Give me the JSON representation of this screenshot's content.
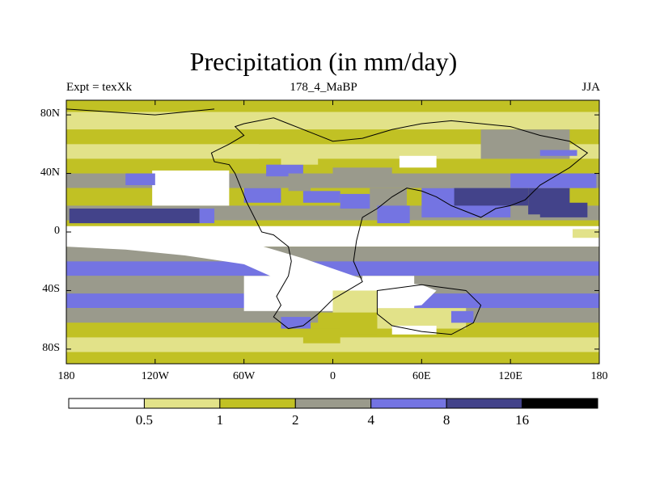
{
  "chart_data": {
    "type": "heatmap",
    "title": "Precipitation (in mm/day)",
    "subtitle_left": "Expt = texXk",
    "subtitle_center": "178_4_MaBP",
    "subtitle_right": "JJA",
    "x_range": [
      -180,
      180
    ],
    "y_range": [
      -90,
      90
    ],
    "x_ticks": [
      {
        "value": -180,
        "label": "180"
      },
      {
        "value": -120,
        "label": "120W"
      },
      {
        "value": -60,
        "label": "60W"
      },
      {
        "value": 0,
        "label": "0"
      },
      {
        "value": 60,
        "label": "60E"
      },
      {
        "value": 120,
        "label": "120E"
      },
      {
        "value": 180,
        "label": "180"
      }
    ],
    "y_ticks": [
      {
        "value": 80,
        "label": "80N"
      },
      {
        "value": 40,
        "label": "40N"
      },
      {
        "value": 0,
        "label": "0"
      },
      {
        "value": -40,
        "label": "40S"
      },
      {
        "value": -80,
        "label": "80S"
      }
    ],
    "levels": [
      "0.5",
      "1",
      "2",
      "4",
      "8",
      "16"
    ],
    "colors": [
      "#ffffff",
      "#e2e289",
      "#c1c124",
      "#9a9a8c",
      "#7474e2",
      "#43438a",
      "#000000"
    ],
    "bands": [
      {
        "lat_top": 90,
        "lat_bottom": 82,
        "level": 2
      },
      {
        "lat_top": 82,
        "lat_bottom": 70,
        "level": 1
      },
      {
        "lat_top": 70,
        "lat_bottom": 60,
        "level": 2
      },
      {
        "lat_top": 60,
        "lat_bottom": 50,
        "level": 1
      },
      {
        "lat_top": 50,
        "lat_bottom": 40,
        "level": 2
      },
      {
        "lat_top": 40,
        "lat_bottom": 30,
        "level": 3
      },
      {
        "lat_top": 30,
        "lat_bottom": 18,
        "level": 2
      },
      {
        "lat_top": 18,
        "lat_bottom": 8,
        "level": 3
      },
      {
        "lat_top": 8,
        "lat_bottom": 4,
        "level": 2
      },
      {
        "lat_top": 4,
        "lat_bottom": -10,
        "level": 0
      },
      {
        "lat_top": -10,
        "lat_bottom": -20,
        "level": 3
      },
      {
        "lat_top": -20,
        "lat_bottom": -30,
        "level": 4
      },
      {
        "lat_top": -30,
        "lat_bottom": -42,
        "level": 3
      },
      {
        "lat_top": -42,
        "lat_bottom": -52,
        "level": 4
      },
      {
        "lat_top": -52,
        "lat_bottom": -62,
        "level": 3
      },
      {
        "lat_top": -62,
        "lat_bottom": -72,
        "level": 2
      },
      {
        "lat_top": -72,
        "lat_bottom": -82,
        "level": 1
      },
      {
        "lat_top": -82,
        "lat_bottom": -90,
        "level": 2
      }
    ],
    "patches": [
      {
        "lon_min": -122,
        "lon_max": -70,
        "lat_max": 42,
        "lat_min": 18,
        "level": 0
      },
      {
        "lon_min": -112,
        "lon_max": -78,
        "lat_max": 40,
        "lat_min": 24,
        "level": 0
      },
      {
        "lon_min": -178,
        "lon_max": -90,
        "lat_max": 16,
        "lat_min": 6,
        "level": 5
      },
      {
        "lon_min": -90,
        "lon_max": -80,
        "lat_max": 16,
        "lat_min": 6,
        "level": 4
      },
      {
        "lon_min": -140,
        "lon_max": -120,
        "lat_max": 40,
        "lat_min": 32,
        "level": 4
      },
      {
        "lon_min": -45,
        "lon_max": -20,
        "lat_max": 46,
        "lat_min": 38,
        "level": 4
      },
      {
        "lon_min": -30,
        "lon_max": -15,
        "lat_max": 40,
        "lat_min": 28,
        "level": 3
      },
      {
        "lon_min": -70,
        "lon_max": -50,
        "lat_max": 60,
        "lat_min": 50,
        "level": 1
      },
      {
        "lon_min": -35,
        "lon_max": -10,
        "lat_max": 54,
        "lat_min": 46,
        "level": 1
      },
      {
        "lon_min": -60,
        "lon_max": -35,
        "lat_max": 30,
        "lat_min": 20,
        "level": 4
      },
      {
        "lon_min": -20,
        "lon_max": 5,
        "lat_max": 28,
        "lat_min": 20,
        "level": 4
      },
      {
        "lon_min": 0,
        "lon_max": 40,
        "lat_max": 44,
        "lat_min": 34,
        "level": 3
      },
      {
        "lon_min": 5,
        "lon_max": 30,
        "lat_max": 26,
        "lat_min": 16,
        "level": 4
      },
      {
        "lon_min": 25,
        "lon_max": 50,
        "lat_max": 30,
        "lat_min": 12,
        "level": 3
      },
      {
        "lon_min": 30,
        "lon_max": 52,
        "lat_max": 18,
        "lat_min": 6,
        "level": 4
      },
      {
        "lon_min": 60,
        "lon_max": 120,
        "lat_max": 30,
        "lat_min": 10,
        "level": 4
      },
      {
        "lon_min": 82,
        "lon_max": 132,
        "lat_max": 30,
        "lat_min": 18,
        "level": 5
      },
      {
        "lon_min": 132,
        "lon_max": 160,
        "lat_max": 30,
        "lat_min": 12,
        "level": 5
      },
      {
        "lon_min": 140,
        "lon_max": 172,
        "lat_max": 20,
        "lat_min": 10,
        "level": 5
      },
      {
        "lon_min": 120,
        "lon_max": 178,
        "lat_max": 40,
        "lat_min": 30,
        "level": 4
      },
      {
        "lon_min": 100,
        "lon_max": 160,
        "lat_max": 70,
        "lat_min": 50,
        "level": 3
      },
      {
        "lon_min": 140,
        "lon_max": 165,
        "lat_max": 56,
        "lat_min": 52,
        "level": 4
      },
      {
        "lon_min": 162,
        "lon_max": 180,
        "lat_max": 2,
        "lat_min": -4,
        "level": 1
      },
      {
        "lon_min": 45,
        "lon_max": 70,
        "lat_max": 52,
        "lat_min": 44,
        "level": 0
      },
      {
        "lon_min": -60,
        "lon_max": 0,
        "lat_max": -30,
        "lat_min": -54,
        "level": 0
      },
      {
        "lon_min": 20,
        "lon_max": 55,
        "lat_max": -30,
        "lat_min": -58,
        "level": 0
      },
      {
        "lon_min": 0,
        "lon_max": 30,
        "lat_max": -40,
        "lat_min": -56,
        "level": 1
      },
      {
        "lon_min": 30,
        "lon_max": 90,
        "lat_max": -52,
        "lat_min": -66,
        "level": 1
      },
      {
        "lon_min": -10,
        "lon_max": 30,
        "lat_max": -55,
        "lat_min": -70,
        "level": 2
      },
      {
        "lon_min": -35,
        "lon_max": -15,
        "lat_max": -58,
        "lat_min": -66,
        "level": 4
      },
      {
        "lon_min": 40,
        "lon_max": 70,
        "lat_max": -64,
        "lat_min": -70,
        "level": 0
      },
      {
        "lon_min": 80,
        "lon_max": 95,
        "lat_max": -54,
        "lat_min": -62,
        "level": 4
      },
      {
        "lon_min": -20,
        "lon_max": 5,
        "lat_max": -66,
        "lat_min": -76,
        "level": 2
      }
    ],
    "whiteCurves": [
      {
        "lons": [
          -180,
          -140,
          -100,
          -60,
          -20,
          20,
          60,
          70
        ],
        "lats": [
          -2,
          -2,
          -3,
          -6,
          -18,
          -32,
          -36,
          -40
        ]
      },
      {
        "lons": [
          -180,
          -140,
          -100,
          -60,
          -20,
          20,
          60,
          70
        ],
        "lats": [
          -10,
          -12,
          -16,
          -22,
          -40,
          -54,
          -50,
          -40
        ]
      }
    ]
  }
}
